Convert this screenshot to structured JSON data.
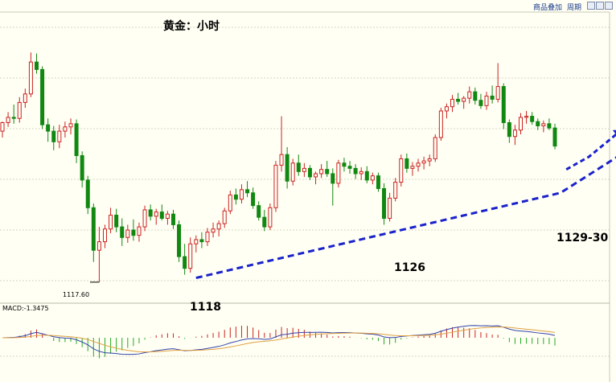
{
  "toolbar": {
    "add_product": "商品叠加",
    "period": "周期"
  },
  "chart_data": {
    "type": "candlestick",
    "title": "黄金：小时",
    "ylim": [
      1116,
      1143
    ],
    "candles": [
      [
        1131.8,
        1132.7,
        1131.2,
        1132.6
      ],
      [
        1132.6,
        1133.6,
        1132.2,
        1133.1
      ],
      [
        1133.1,
        1134.3,
        1132.5,
        1133.0
      ],
      [
        1133.0,
        1135.0,
        1132.6,
        1134.5
      ],
      [
        1134.5,
        1135.8,
        1134.0,
        1135.3
      ],
      [
        1135.3,
        1139.2,
        1135.0,
        1138.3
      ],
      [
        1138.3,
        1139.1,
        1137.2,
        1137.6
      ],
      [
        1137.6,
        1137.9,
        1132.0,
        1132.4
      ],
      [
        1132.4,
        1133.0,
        1130.8,
        1131.8
      ],
      [
        1131.8,
        1132.3,
        1130.0,
        1130.8
      ],
      [
        1130.8,
        1132.4,
        1130.2,
        1131.8
      ],
      [
        1131.8,
        1132.7,
        1131.2,
        1132.2
      ],
      [
        1132.2,
        1133.0,
        1131.5,
        1132.5
      ],
      [
        1132.5,
        1132.9,
        1128.8,
        1129.5
      ],
      [
        1129.5,
        1129.9,
        1126.5,
        1127.2
      ],
      [
        1127.2,
        1127.6,
        1124.0,
        1124.6
      ],
      [
        1124.6,
        1125.0,
        1119.5,
        1120.6
      ],
      [
        1120.6,
        1122.8,
        1117.6,
        1121.4
      ],
      [
        1121.4,
        1123.0,
        1120.8,
        1122.6
      ],
      [
        1122.6,
        1124.6,
        1122.2,
        1123.9
      ],
      [
        1123.9,
        1124.5,
        1122.3,
        1122.8
      ],
      [
        1122.8,
        1123.6,
        1121.0,
        1121.8
      ],
      [
        1121.8,
        1123.0,
        1121.3,
        1122.5
      ],
      [
        1122.5,
        1123.5,
        1121.5,
        1122.0
      ],
      [
        1122.0,
        1123.2,
        1121.4,
        1122.8
      ],
      [
        1122.8,
        1124.8,
        1122.4,
        1124.4
      ],
      [
        1124.4,
        1124.9,
        1123.4,
        1123.8
      ],
      [
        1123.8,
        1124.5,
        1123.0,
        1124.2
      ],
      [
        1124.2,
        1124.9,
        1123.4,
        1123.6
      ],
      [
        1123.6,
        1124.3,
        1123.0,
        1124.0
      ],
      [
        1124.0,
        1124.4,
        1122.6,
        1123.0
      ],
      [
        1123.0,
        1123.4,
        1119.5,
        1120.0
      ],
      [
        1120.0,
        1121.2,
        1118.3,
        1118.9
      ],
      [
        1118.9,
        1121.8,
        1118.5,
        1121.2
      ],
      [
        1121.2,
        1122.0,
        1120.4,
        1121.6
      ],
      [
        1121.6,
        1122.3,
        1120.8,
        1121.4
      ],
      [
        1121.4,
        1122.7,
        1121.0,
        1122.3
      ],
      [
        1122.3,
        1123.2,
        1121.8,
        1122.6
      ],
      [
        1122.6,
        1123.4,
        1121.9,
        1123.1
      ],
      [
        1123.1,
        1124.6,
        1122.7,
        1124.3
      ],
      [
        1124.3,
        1126.2,
        1124.0,
        1125.8
      ],
      [
        1125.8,
        1126.4,
        1124.9,
        1125.4
      ],
      [
        1125.4,
        1126.8,
        1125.0,
        1126.3
      ],
      [
        1126.3,
        1127.1,
        1125.6,
        1126.0
      ],
      [
        1126.0,
        1126.5,
        1124.5,
        1124.8
      ],
      [
        1124.8,
        1125.2,
        1123.4,
        1123.7
      ],
      [
        1123.7,
        1124.4,
        1122.4,
        1122.8
      ],
      [
        1122.8,
        1125.0,
        1122.5,
        1124.6
      ],
      [
        1124.6,
        1129.0,
        1124.2,
        1128.6
      ],
      [
        1128.6,
        1133.2,
        1128.0,
        1129.6
      ],
      [
        1129.6,
        1130.3,
        1126.4,
        1127.1
      ],
      [
        1127.1,
        1129.2,
        1126.7,
        1128.8
      ],
      [
        1128.8,
        1129.6,
        1127.6,
        1128.0
      ],
      [
        1128.0,
        1128.8,
        1127.5,
        1128.3
      ],
      [
        1128.3,
        1128.6,
        1127.2,
        1127.5
      ],
      [
        1127.5,
        1128.0,
        1126.8,
        1127.8
      ],
      [
        1127.8,
        1128.7,
        1127.4,
        1128.2
      ],
      [
        1128.2,
        1129.0,
        1127.5,
        1127.8
      ],
      [
        1127.8,
        1128.3,
        1124.8,
        1126.9
      ],
      [
        1126.9,
        1129.1,
        1126.5,
        1128.8
      ],
      [
        1128.8,
        1129.3,
        1128.0,
        1128.5
      ],
      [
        1128.5,
        1129.0,
        1127.8,
        1128.3
      ],
      [
        1128.3,
        1128.7,
        1127.3,
        1127.8
      ],
      [
        1127.8,
        1128.4,
        1127.2,
        1128.0
      ],
      [
        1128.0,
        1128.5,
        1126.9,
        1127.2
      ],
      [
        1127.2,
        1127.9,
        1126.8,
        1127.6
      ],
      [
        1127.6,
        1127.9,
        1126.1,
        1126.4
      ],
      [
        1126.4,
        1126.9,
        1123.0,
        1123.6
      ],
      [
        1123.6,
        1126.0,
        1123.3,
        1125.5
      ],
      [
        1125.5,
        1127.4,
        1125.2,
        1127.0
      ],
      [
        1127.0,
        1129.6,
        1126.6,
        1129.2
      ],
      [
        1129.2,
        1129.7,
        1127.9,
        1128.3
      ],
      [
        1128.3,
        1128.9,
        1127.6,
        1128.5
      ],
      [
        1128.5,
        1129.2,
        1128.0,
        1128.8
      ],
      [
        1128.8,
        1129.4,
        1128.2,
        1129.0
      ],
      [
        1129.0,
        1129.6,
        1128.5,
        1129.2
      ],
      [
        1129.2,
        1131.5,
        1128.9,
        1131.2
      ],
      [
        1131.2,
        1134.0,
        1130.9,
        1133.7
      ],
      [
        1133.7,
        1134.4,
        1133.0,
        1134.1
      ],
      [
        1134.1,
        1135.2,
        1133.6,
        1134.8
      ],
      [
        1134.8,
        1135.4,
        1134.3,
        1134.6
      ],
      [
        1134.6,
        1135.1,
        1133.9,
        1134.9
      ],
      [
        1134.9,
        1136.0,
        1134.4,
        1135.5
      ],
      [
        1135.5,
        1135.9,
        1134.3,
        1134.7
      ],
      [
        1134.7,
        1135.3,
        1133.9,
        1134.2
      ],
      [
        1134.2,
        1135.5,
        1133.8,
        1135.1
      ],
      [
        1135.1,
        1136.1,
        1134.4,
        1134.8
      ],
      [
        1134.8,
        1138.2,
        1134.5,
        1136.0
      ],
      [
        1136.0,
        1136.3,
        1132.0,
        1132.6
      ],
      [
        1132.6,
        1132.9,
        1130.7,
        1131.3
      ],
      [
        1131.3,
        1132.4,
        1130.5,
        1131.9
      ],
      [
        1131.9,
        1133.5,
        1131.5,
        1133.1
      ],
      [
        1133.1,
        1133.7,
        1132.5,
        1133.2
      ],
      [
        1133.2,
        1133.6,
        1132.4,
        1132.7
      ],
      [
        1132.7,
        1133.0,
        1131.9,
        1132.3
      ],
      [
        1132.3,
        1132.8,
        1131.7,
        1132.5
      ],
      [
        1132.5,
        1133.0,
        1131.9,
        1132.1
      ],
      [
        1132.1,
        1132.5,
        1130.1,
        1130.4
      ]
    ],
    "price_label": "1117.60",
    "annotations": [
      "1118",
      "1126",
      "1129-30"
    ],
    "trendline": [
      [
        34,
        1118
      ],
      [
        98,
        1126
      ],
      [
        108,
        1129.4
      ]
    ],
    "projection": [
      [
        99,
        1128.2
      ],
      [
        103,
        1129.4
      ],
      [
        108,
        1131.6
      ]
    ],
    "indicator": {
      "label": "MACD:-1.3475"
    }
  }
}
